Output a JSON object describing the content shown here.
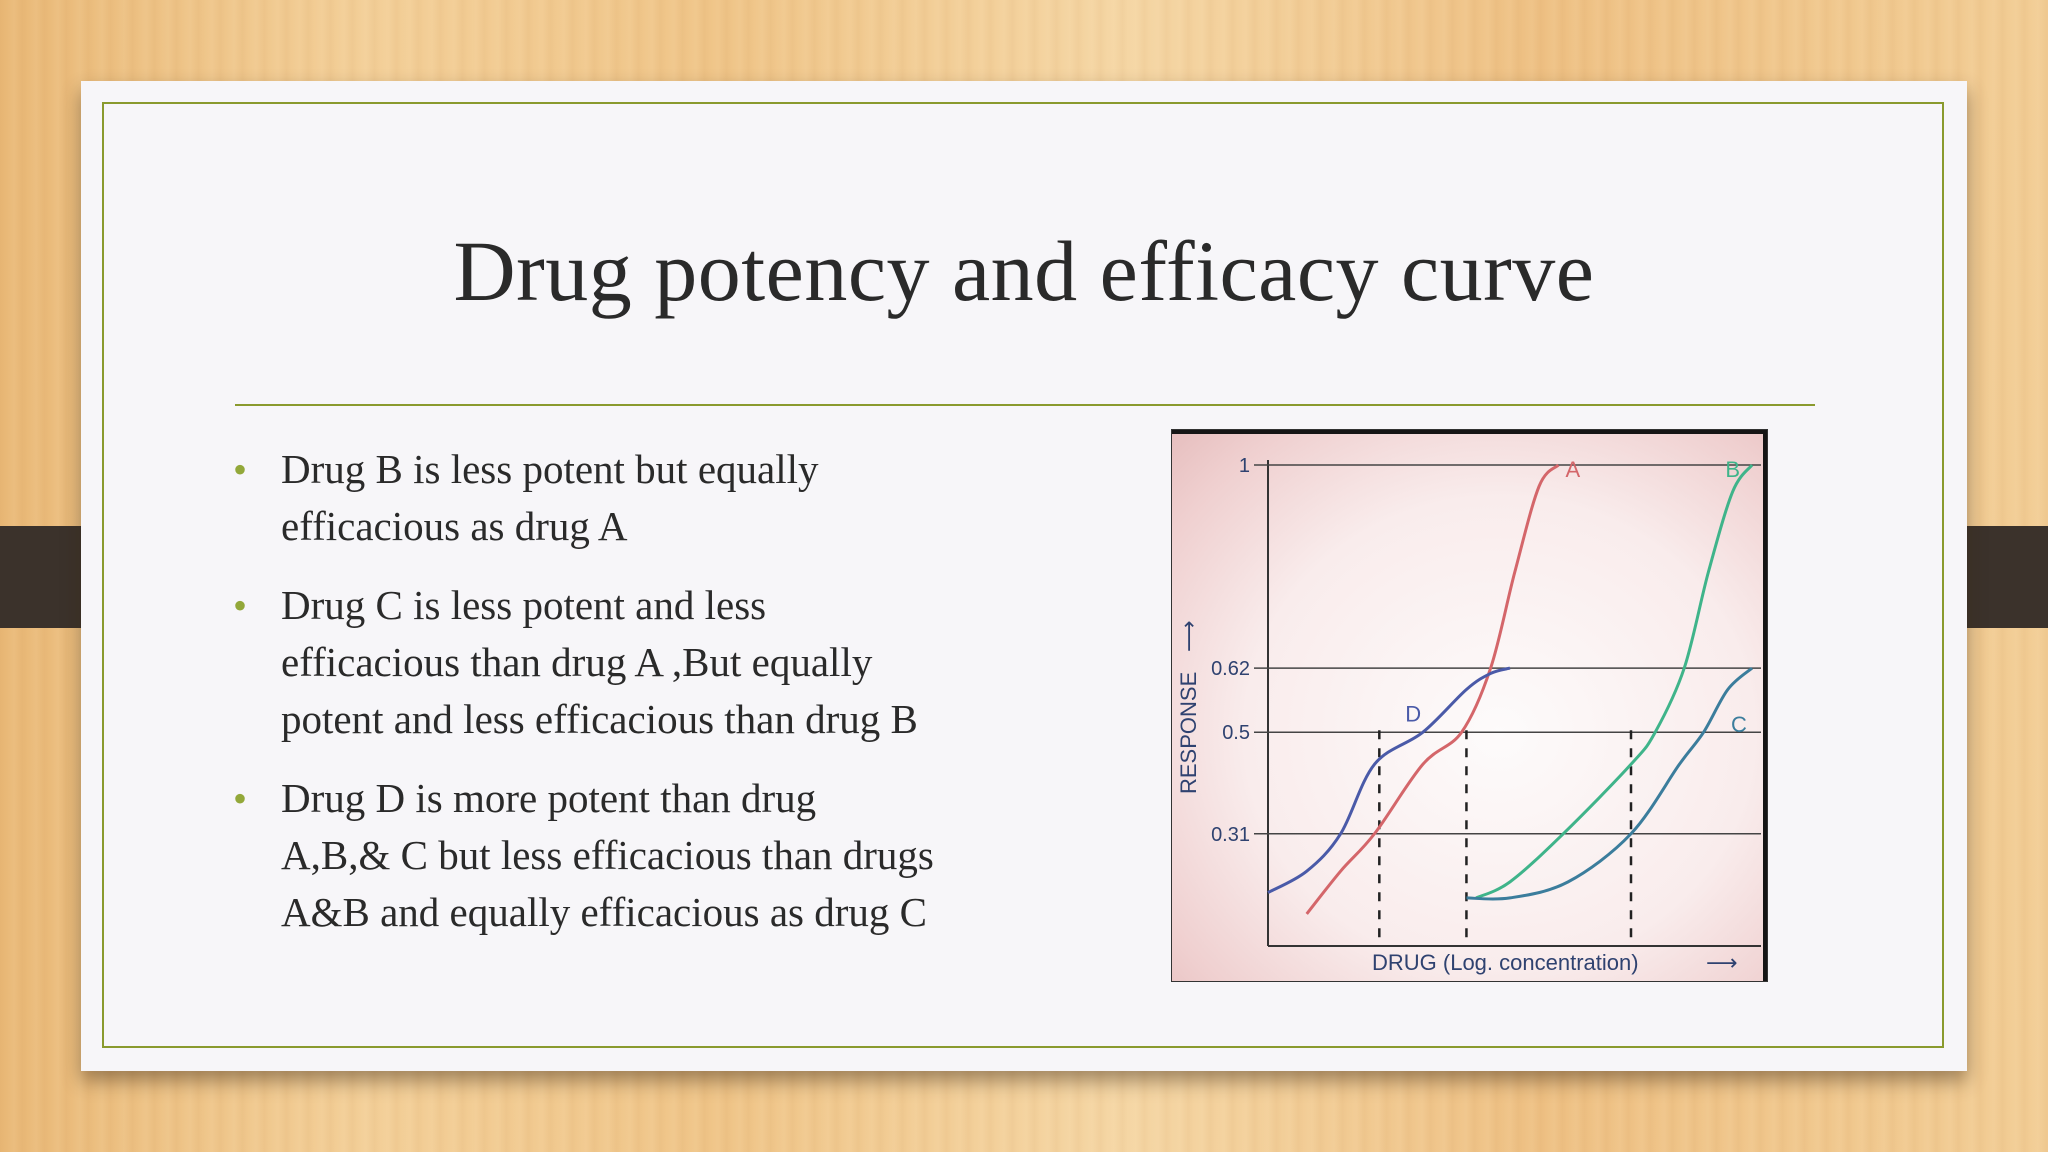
{
  "slide": {
    "title": "Drug potency and efficacy curve",
    "bullets": [
      {
        "lines": [
          "Drug B is less potent but equally",
          "efficacious as drug A"
        ]
      },
      {
        "lines": [
          "Drug C is less potent and less",
          "efficacious than drug A ,But equally",
          "potent and less efficacious than drug B"
        ]
      },
      {
        "lines": [
          "Drug D is more potent than drug",
          "A,B,& C but less efficacious than drugs",
          "A&B and equally efficacious as drug C"
        ]
      }
    ],
    "bullet_glyph": "•"
  },
  "chart_data": {
    "type": "line",
    "xlabel": "DRUG (Log. concentration)",
    "ylabel": "RESPONSE",
    "yticks": [
      "1",
      "0.62",
      "0.5",
      "0.31"
    ],
    "ytick_values": [
      1,
      0.62,
      0.5,
      0.31
    ],
    "ylim": [
      0.1,
      1
    ],
    "xlim": [
      0,
      10
    ],
    "series": [
      {
        "name": "A",
        "color": "#d4666a",
        "x": [
          0.8,
          1.5,
          2.2,
          3.2,
          4.0,
          4.6,
          5.1,
          5.6,
          6.0
        ],
        "y": [
          0.16,
          0.24,
          0.31,
          0.44,
          0.5,
          0.62,
          0.8,
          0.96,
          1.0
        ]
      },
      {
        "name": "B",
        "color": "#3fb48a",
        "x": [
          4.3,
          5.0,
          6.1,
          7.5,
          8.0,
          8.6,
          9.1,
          9.6,
          10.0
        ],
        "y": [
          0.19,
          0.22,
          0.31,
          0.44,
          0.5,
          0.62,
          0.8,
          0.95,
          1.0
        ]
      },
      {
        "name": "C",
        "color": "#3b7d9c",
        "x": [
          4.1,
          5.0,
          6.2,
          7.5,
          8.5,
          9.0,
          9.5,
          10.0
        ],
        "y": [
          0.19,
          0.19,
          0.22,
          0.31,
          0.44,
          0.5,
          0.58,
          0.62
        ]
      },
      {
        "name": "D",
        "color": "#4a5aa8",
        "x": [
          0.0,
          0.8,
          1.5,
          2.2,
          3.2,
          4.1,
          4.6,
          5.0
        ],
        "y": [
          0.2,
          0.24,
          0.31,
          0.44,
          0.5,
          0.58,
          0.61,
          0.62
        ]
      }
    ],
    "dashed_x": [
      2.3,
      4.1,
      7.5
    ],
    "labels": {
      "A": "A",
      "B": "B",
      "C": "C",
      "D": "D"
    }
  }
}
